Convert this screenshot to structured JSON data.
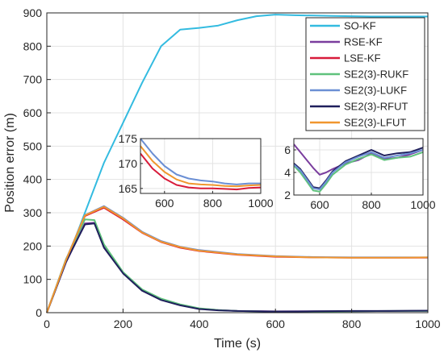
{
  "chart_data": {
    "type": "line",
    "title": "",
    "xlabel": "Time (s)",
    "ylabel": "Position error  (m)",
    "xlim": [
      0,
      1000
    ],
    "ylim": [
      0,
      900
    ],
    "xticks": [
      0,
      200,
      400,
      600,
      800,
      1000
    ],
    "yticks": [
      0,
      100,
      200,
      300,
      400,
      500,
      600,
      700,
      800,
      900
    ],
    "grid": true,
    "legend_position": "top-right",
    "series": [
      {
        "name": "SO-KF",
        "color": "#33bbe0",
        "x": [
          0,
          50,
          100,
          150,
          200,
          250,
          300,
          350,
          400,
          450,
          500,
          550,
          600,
          650,
          700,
          750,
          800,
          850,
          900,
          950,
          1000
        ],
        "y": [
          0,
          150,
          300,
          450,
          570,
          690,
          800,
          850,
          855,
          862,
          878,
          890,
          895,
          893,
          892,
          891,
          890,
          889,
          889,
          889,
          889
        ]
      },
      {
        "name": "RSE-KF",
        "color": "#7a3d9e",
        "x": [
          0,
          50,
          100,
          125,
          150,
          200,
          250,
          300,
          350,
          400,
          450,
          500,
          600,
          700,
          800,
          900,
          1000
        ],
        "y": [
          0,
          150,
          268,
          270,
          200,
          120,
          68,
          40,
          24,
          12,
          8,
          5,
          4,
          4,
          4,
          5,
          5
        ]
      },
      {
        "name": "LSE-KF",
        "color": "#d81b3a",
        "x": [
          0,
          50,
          100,
          150,
          200,
          250,
          300,
          350,
          400,
          500,
          600,
          700,
          800,
          900,
          1000
        ],
        "y": [
          0,
          155,
          290,
          315,
          280,
          240,
          212,
          195,
          185,
          174,
          168,
          166,
          165,
          165,
          165
        ]
      },
      {
        "name": "SE2(3)-RUKF",
        "color": "#5fc27c",
        "x": [
          0,
          50,
          100,
          125,
          150,
          200,
          250,
          300,
          350,
          400,
          450,
          500,
          600,
          700,
          800,
          900,
          1000
        ],
        "y": [
          0,
          160,
          280,
          278,
          205,
          122,
          70,
          42,
          25,
          13,
          8,
          5,
          3,
          3,
          4,
          5,
          5
        ]
      },
      {
        "name": "SE2(3)-LUKF",
        "color": "#6b8fd4",
        "x": [
          0,
          50,
          100,
          150,
          200,
          250,
          300,
          350,
          400,
          500,
          600,
          700,
          800,
          900,
          1000
        ],
        "y": [
          0,
          158,
          293,
          320,
          285,
          243,
          215,
          198,
          188,
          176,
          170,
          167,
          166,
          166,
          166
        ]
      },
      {
        "name": "SE2(3)-RFUT",
        "color": "#1f1f5c",
        "x": [
          0,
          50,
          100,
          125,
          150,
          200,
          250,
          300,
          350,
          400,
          450,
          500,
          600,
          700,
          800,
          900,
          1000
        ],
        "y": [
          0,
          152,
          265,
          268,
          195,
          118,
          66,
          38,
          22,
          11,
          7,
          5,
          3,
          4,
          5,
          5,
          6
        ]
      },
      {
        "name": "SE2(3)-LFUT",
        "color": "#f0962e",
        "x": [
          0,
          50,
          100,
          150,
          200,
          250,
          300,
          350,
          400,
          500,
          600,
          700,
          800,
          900,
          1000
        ],
        "y": [
          0,
          157,
          292,
          318,
          283,
          241,
          213,
          197,
          186,
          175,
          169,
          166,
          165,
          165,
          166
        ]
      }
    ],
    "insets": [
      {
        "xlim": [
          500,
          1000
        ],
        "ylim": [
          164,
          175
        ],
        "xticks": [
          600,
          800,
          1000
        ],
        "yticks": [
          165,
          170,
          175
        ],
        "series": [
          {
            "color": "#6b8fd4",
            "x": [
              500,
              550,
              600,
              650,
              700,
              750,
              800,
              850,
              900,
              950,
              1000
            ],
            "y": [
              175,
              172,
              169.5,
              167.8,
              167,
              166.6,
              166.4,
              166,
              165.8,
              166,
              166
            ]
          },
          {
            "color": "#f0962e",
            "x": [
              500,
              550,
              600,
              650,
              700,
              750,
              800,
              850,
              900,
              950,
              1000
            ],
            "y": [
              173.5,
              170.5,
              168.3,
              166.8,
              166,
              165.8,
              165.7,
              165.5,
              165.4,
              165.6,
              165.7
            ]
          },
          {
            "color": "#d81b3a",
            "x": [
              500,
              550,
              600,
              650,
              700,
              750,
              800,
              850,
              900,
              950,
              1000
            ],
            "y": [
              172,
              169,
              167,
              165.7,
              165.2,
              165,
              165,
              164.9,
              164.8,
              165.1,
              165.2
            ]
          }
        ]
      },
      {
        "xlim": [
          500,
          1000
        ],
        "ylim": [
          2,
          7
        ],
        "xticks": [
          600,
          800,
          1000
        ],
        "yticks": [
          2,
          4,
          6
        ],
        "series": [
          {
            "color": "#7a3d9e",
            "x": [
              500,
              525,
              550,
              575,
              600,
              625,
              650,
              700,
              750,
              800,
              850,
              900,
              950,
              1000
            ],
            "y": [
              6.5,
              5.8,
              5.1,
              4.4,
              3.8,
              4.0,
              4.3,
              4.8,
              5.1,
              5.7,
              5.2,
              5.3,
              5.6,
              6.0
            ]
          },
          {
            "color": "#5fc27c",
            "x": [
              500,
              525,
              550,
              575,
              600,
              625,
              650,
              700,
              750,
              800,
              850,
              900,
              950,
              1000
            ],
            "y": [
              4.6,
              4.0,
              3.2,
              2.4,
              2.3,
              3.0,
              3.8,
              4.7,
              5.2,
              5.6,
              5.1,
              5.3,
              5.4,
              5.8
            ]
          },
          {
            "color": "#1f1f5c",
            "x": [
              500,
              525,
              550,
              575,
              600,
              625,
              650,
              700,
              750,
              800,
              850,
              900,
              950,
              1000
            ],
            "y": [
              4.8,
              4.3,
              3.5,
              2.7,
              2.6,
              3.3,
              4.1,
              5.0,
              5.5,
              6.0,
              5.5,
              5.7,
              5.8,
              6.2
            ]
          },
          {
            "color": "#6b8fd4",
            "x": [
              500,
              525,
              550,
              575,
              600,
              625,
              650,
              700,
              750,
              800,
              850,
              900,
              950,
              1000
            ],
            "y": [
              4.7,
              4.2,
              3.4,
              2.6,
              2.5,
              3.2,
              4.0,
              4.9,
              5.4,
              5.8,
              5.3,
              5.5,
              5.7,
              6.0
            ]
          }
        ]
      }
    ]
  }
}
